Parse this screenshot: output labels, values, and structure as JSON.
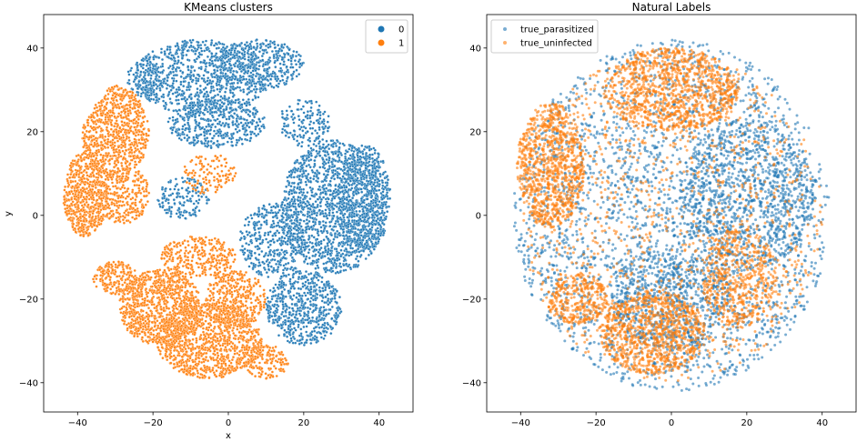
{
  "chart_data": [
    {
      "type": "scatter",
      "title": "KMeans clusters",
      "xlabel": "x",
      "ylabel": "y",
      "xlim": [
        -49,
        49
      ],
      "ylim": [
        -47,
        48
      ],
      "xticks": [
        -40,
        -20,
        0,
        20,
        40
      ],
      "yticks": [
        -40,
        -20,
        0,
        20,
        40
      ],
      "legend_position": "upper-right",
      "series": [
        {
          "name": "0",
          "color": "#1f77b4",
          "regions": [
            {
              "cx": -7,
              "cy": 33,
              "rx": 18,
              "ry": 9,
              "n": 900
            },
            {
              "cx": 8,
              "cy": 36,
              "rx": 12,
              "ry": 6,
              "n": 400
            },
            {
              "cx": -3,
              "cy": 22,
              "rx": 13,
              "ry": 6,
              "n": 450
            },
            {
              "cx": 20,
              "cy": 22,
              "rx": 7,
              "ry": 6,
              "n": 150
            },
            {
              "cx": 28,
              "cy": 2,
              "rx": 14,
              "ry": 16,
              "n": 1500
            },
            {
              "cx": 36,
              "cy": 4,
              "rx": 7,
              "ry": 13,
              "n": 500
            },
            {
              "cx": 20,
              "cy": -22,
              "rx": 10,
              "ry": 9,
              "n": 600
            },
            {
              "cx": 12,
              "cy": -6,
              "rx": 9,
              "ry": 9,
              "n": 400
            },
            {
              "cx": -12,
              "cy": 4,
              "rx": 7,
              "ry": 5,
              "n": 150
            },
            {
              "cx": -22,
              "cy": 33,
              "rx": 5,
              "ry": 5,
              "n": 80
            }
          ]
        },
        {
          "name": "1",
          "color": "#ff7f0e",
          "regions": [
            {
              "cx": -30,
              "cy": 20,
              "rx": 9,
              "ry": 11,
              "n": 800
            },
            {
              "cx": -38,
              "cy": 5,
              "rx": 6,
              "ry": 10,
              "n": 600
            },
            {
              "cx": -28,
              "cy": 5,
              "rx": 7,
              "ry": 7,
              "n": 300
            },
            {
              "cx": -30,
              "cy": -15,
              "rx": 6,
              "ry": 4,
              "n": 200
            },
            {
              "cx": -18,
              "cy": -22,
              "rx": 11,
              "ry": 9,
              "n": 900
            },
            {
              "cx": -5,
              "cy": -30,
              "rx": 14,
              "ry": 9,
              "n": 1100
            },
            {
              "cx": 2,
              "cy": -20,
              "rx": 8,
              "ry": 7,
              "n": 350
            },
            {
              "cx": -8,
              "cy": -10,
              "rx": 10,
              "ry": 5,
              "n": 300
            },
            {
              "cx": -5,
              "cy": 10,
              "rx": 7,
              "ry": 5,
              "n": 120
            },
            {
              "cx": 10,
              "cy": -35,
              "rx": 6,
              "ry": 4,
              "n": 150
            }
          ]
        }
      ]
    },
    {
      "type": "scatter",
      "title": "Natural Labels",
      "xlabel": "",
      "ylabel": "",
      "xlim": [
        -49,
        49
      ],
      "ylim": [
        -47,
        48
      ],
      "xticks": [
        -40,
        -20,
        0,
        20,
        40
      ],
      "yticks": [
        -40,
        -20,
        0,
        20,
        40
      ],
      "legend_position": "upper-left",
      "series": [
        {
          "name": "true_parasitized",
          "color": "#1f77b4",
          "regions": [
            {
              "cx": 0,
              "cy": 0,
              "rx": 42,
              "ry": 42,
              "n": 2600
            },
            {
              "cx": 20,
              "cy": 5,
              "rx": 18,
              "ry": 18,
              "n": 900
            },
            {
              "cx": 0,
              "cy": -20,
              "rx": 16,
              "ry": 12,
              "n": 600
            }
          ]
        },
        {
          "name": "true_uninfected",
          "color": "#ff7f0e",
          "regions": [
            {
              "cx": 0,
              "cy": 30,
              "rx": 18,
              "ry": 10,
              "n": 1000
            },
            {
              "cx": -32,
              "cy": 12,
              "rx": 9,
              "ry": 15,
              "n": 900
            },
            {
              "cx": -5,
              "cy": -28,
              "rx": 14,
              "ry": 10,
              "n": 900
            },
            {
              "cx": 18,
              "cy": -15,
              "rx": 10,
              "ry": 12,
              "n": 500
            },
            {
              "cx": 0,
              "cy": 0,
              "rx": 40,
              "ry": 40,
              "n": 1200
            },
            {
              "cx": -25,
              "cy": -20,
              "rx": 8,
              "ry": 6,
              "n": 300
            }
          ]
        }
      ]
    }
  ]
}
